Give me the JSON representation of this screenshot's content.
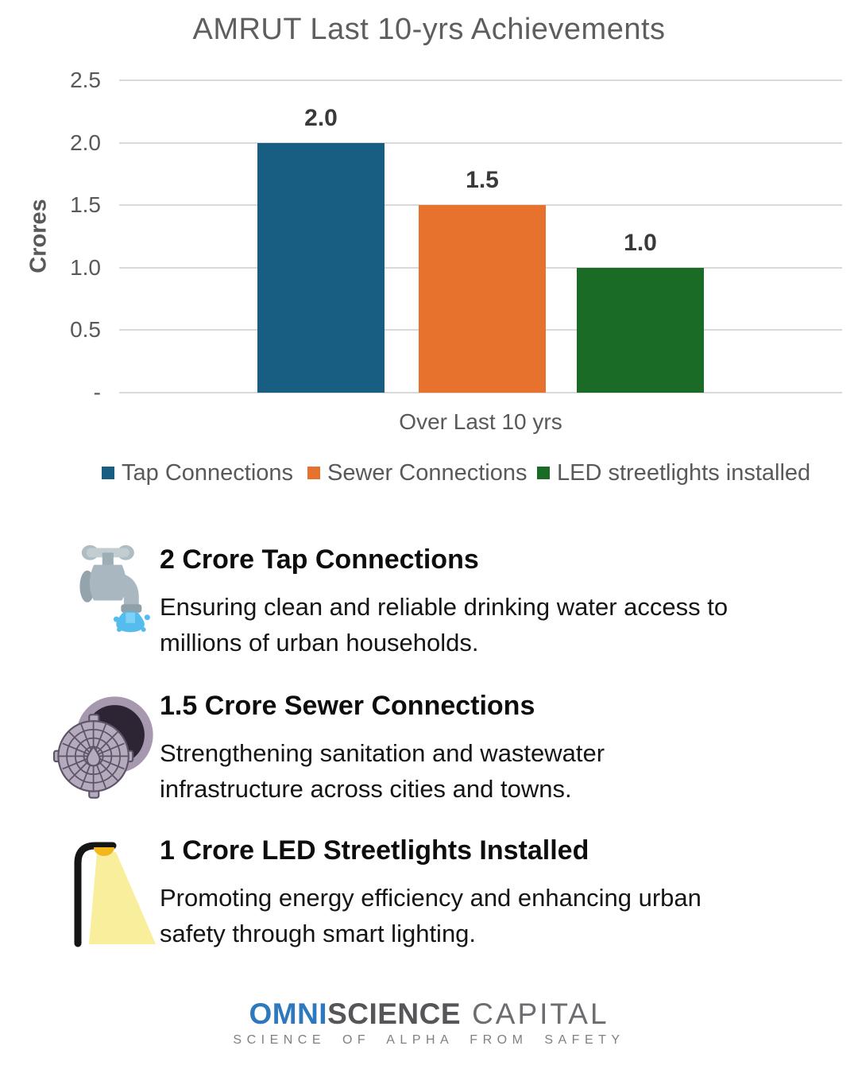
{
  "chart_data": {
    "type": "bar",
    "title": "AMRUT Last 10-yrs Achievements",
    "categories": [
      "Over Last 10 yrs"
    ],
    "series": [
      {
        "name": "Tap Connections",
        "values": [
          2.0
        ],
        "label": "2.0",
        "color": "#175E82"
      },
      {
        "name": "Sewer Connections",
        "values": [
          1.5
        ],
        "label": "1.5",
        "color": "#E7722E"
      },
      {
        "name": "LED streetlights installed",
        "values": [
          1.0
        ],
        "label": "1.0",
        "color": "#1A6B26"
      }
    ],
    "xlabel": "Over Last 10 yrs",
    "ylabel": "Crores",
    "ylim": [
      0,
      2.5
    ],
    "yticks": [
      {
        "value": 0,
        "label": "-"
      },
      {
        "value": 0.5,
        "label": "0.5"
      },
      {
        "value": 1.0,
        "label": "1.0"
      },
      {
        "value": 1.5,
        "label": "1.5"
      },
      {
        "value": 2.0,
        "label": "2.0"
      },
      {
        "value": 2.5,
        "label": "2.5"
      }
    ],
    "grid": true,
    "legend_position": "bottom"
  },
  "sections": [
    {
      "icon": "tap-icon",
      "heading": "2 Crore Tap Connections",
      "body": "Ensuring clean and reliable drinking water access to\nmillions of urban households."
    },
    {
      "icon": "manhole-icon",
      "heading": "1.5 Crore Sewer Connections",
      "body": "Strengthening sanitation and wastewater\ninfrastructure across cities and towns."
    },
    {
      "icon": "streetlight-icon",
      "heading": "1 Crore LED Streetlights Installed",
      "body": "Promoting energy efficiency and enhancing urban\nsafety through smart lighting."
    }
  ],
  "footer": {
    "brand_part1": "OMNI",
    "brand_part2": "SCIENCE",
    "brand_part3": "CAPITAL",
    "tagline": "SCIENCE OF ALPHA FROM SAFETY"
  },
  "colors": {
    "bar_blue": "#175E82",
    "bar_orange": "#E7722E",
    "bar_green": "#1A6B26",
    "axis_text": "#595959",
    "gridline": "#D9D9D9",
    "brand_blue": "#2E79BE",
    "brand_gray": "#55565A",
    "tagline_gray": "#7E8083"
  }
}
